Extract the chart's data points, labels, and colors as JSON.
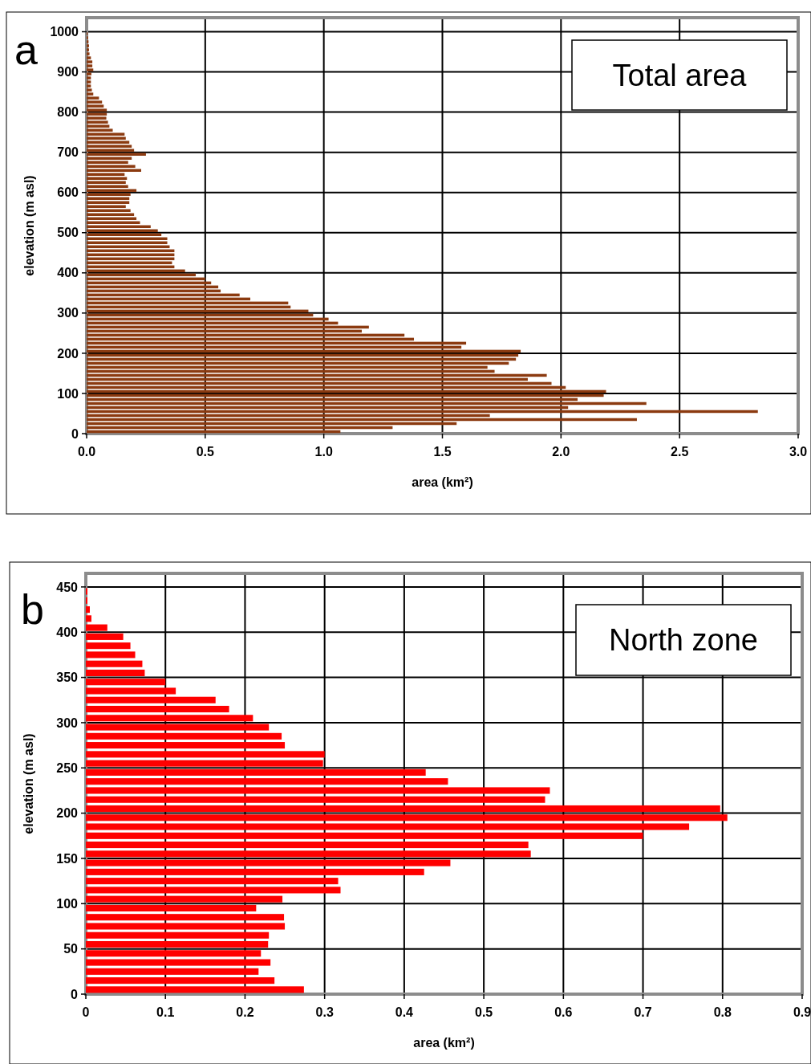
{
  "chart_data": [
    {
      "type": "histogram",
      "orientation": "horizontal",
      "title": "Total area",
      "annotations": [
        "a"
      ],
      "xlabel": "area (km²)",
      "ylabel": "elevation (m asl)",
      "color": "#8b3a10",
      "grid": true,
      "bins": [
        0,
        10,
        20,
        30,
        40,
        50,
        60,
        70,
        80,
        90,
        100,
        110,
        120,
        130,
        140,
        150,
        160,
        170,
        180,
        190,
        200,
        210,
        220,
        230,
        240,
        250,
        260,
        270,
        280,
        290,
        300,
        310,
        320,
        330,
        340,
        350,
        360,
        370,
        380,
        390,
        400,
        410,
        420,
        430,
        440,
        450,
        460,
        470,
        480,
        490,
        500,
        510,
        520,
        530,
        540,
        550,
        560,
        570,
        580,
        590,
        600,
        610,
        620,
        630,
        640,
        650,
        660,
        670,
        680,
        690,
        700,
        710,
        720,
        730,
        740,
        750,
        760,
        770,
        780,
        790,
        800,
        810,
        820,
        830,
        840,
        850,
        860,
        870,
        880,
        890,
        900,
        910,
        920,
        930,
        940,
        950,
        960,
        970,
        980,
        990,
        1000
      ],
      "values": [
        1.07,
        1.29,
        1.56,
        2.32,
        1.7,
        2.83,
        2.03,
        2.36,
        2.07,
        2.18,
        2.19,
        2.02,
        1.96,
        1.86,
        1.94,
        1.72,
        1.69,
        1.78,
        1.81,
        1.82,
        1.83,
        1.58,
        1.6,
        1.38,
        1.34,
        1.16,
        1.19,
        1.06,
        1.02,
        0.955,
        0.935,
        0.86,
        0.85,
        0.69,
        0.645,
        0.565,
        0.555,
        0.525,
        0.5,
        0.46,
        0.415,
        0.37,
        0.36,
        0.37,
        0.37,
        0.37,
        0.35,
        0.34,
        0.34,
        0.315,
        0.3,
        0.27,
        0.225,
        0.21,
        0.2,
        0.185,
        0.165,
        0.18,
        0.18,
        0.185,
        0.21,
        0.175,
        0.165,
        0.17,
        0.16,
        0.23,
        0.205,
        0.175,
        0.19,
        0.25,
        0.2,
        0.19,
        0.18,
        0.165,
        0.16,
        0.11,
        0.096,
        0.09,
        0.083,
        0.085,
        0.085,
        0.072,
        0.065,
        0.052,
        0.028,
        0.022,
        0.018,
        0.018,
        0.018,
        0.02,
        0.028,
        0.024,
        0.024,
        0.018,
        0.012,
        0.01,
        0.01,
        0.008,
        0.006,
        0.004
      ],
      "xlim": [
        0,
        3
      ],
      "xticks": [
        {
          "value": 0,
          "label": "0.0"
        },
        0.5,
        {
          "value": 1,
          "label": "1.0"
        },
        1.5,
        {
          "value": 2,
          "label": "2.0"
        },
        2.5,
        {
          "value": 3,
          "label": "3.0"
        }
      ],
      "ylim": [
        0,
        1035
      ],
      "yticks": [
        0,
        100,
        200,
        300,
        400,
        500,
        600,
        700,
        800,
        900,
        1000
      ]
    },
    {
      "type": "histogram",
      "orientation": "horizontal",
      "title": "North zone",
      "annotations": [
        "b"
      ],
      "xlabel": "area (km²)",
      "ylabel": "elevation (m asl)",
      "color": "#ff0000",
      "grid": true,
      "bins": [
        0,
        10,
        20,
        30,
        40,
        50,
        60,
        70,
        80,
        90,
        100,
        110,
        120,
        130,
        140,
        150,
        160,
        170,
        180,
        190,
        200,
        210,
        220,
        230,
        240,
        250,
        260,
        270,
        280,
        290,
        300,
        310,
        320,
        330,
        340,
        350,
        360,
        370,
        380,
        390,
        400,
        410,
        420,
        430,
        440,
        450
      ],
      "values": [
        0.274,
        0.237,
        0.217,
        0.232,
        0.22,
        0.229,
        0.23,
        0.25,
        0.249,
        0.214,
        0.247,
        0.32,
        0.317,
        0.425,
        0.458,
        0.559,
        0.556,
        0.7,
        0.758,
        0.806,
        0.797,
        0.577,
        0.583,
        0.455,
        0.427,
        0.298,
        0.3,
        0.25,
        0.246,
        0.23,
        0.21,
        0.18,
        0.163,
        0.113,
        0.1,
        0.074,
        0.071,
        0.062,
        0.056,
        0.047,
        0.027,
        0.007,
        0.005,
        0.002,
        0.002
      ],
      "xlim": [
        0,
        0.9
      ],
      "xticks": [
        0,
        0.1,
        0.2,
        0.3,
        0.4,
        0.5,
        0.6,
        0.7,
        0.8,
        0.9
      ],
      "ylim": [
        0,
        465
      ],
      "yticks": [
        0,
        50,
        100,
        150,
        200,
        250,
        300,
        350,
        400,
        450
      ]
    }
  ]
}
